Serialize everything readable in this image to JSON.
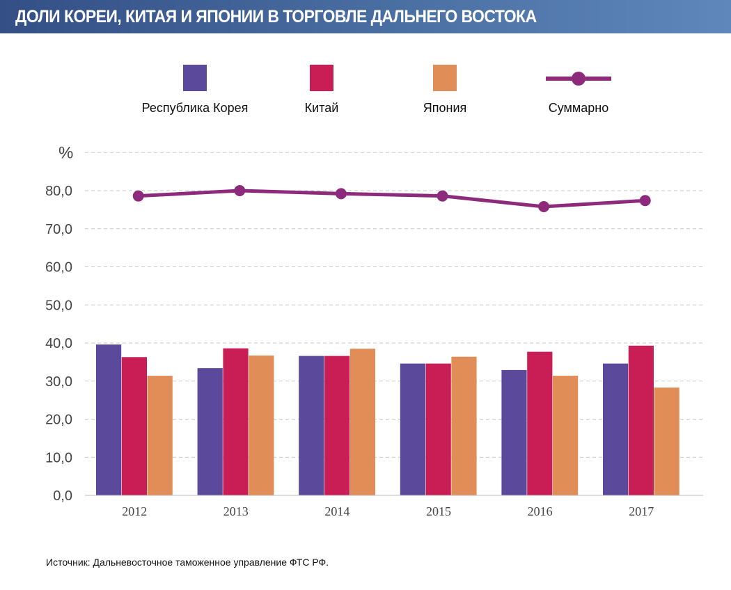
{
  "header": {
    "title": "ДОЛИ КОРЕИ, КИТАЯ И ЯПОНИИ В ТОРГОВЛЕ ДАЛЬНЕГО ВОСТОКА"
  },
  "source": "Источник: Дальневосточное таможенное управление ФТС РФ.",
  "chart_data": {
    "type": "bar",
    "title": "ДОЛИ КОРЕИ, КИТАЯ И ЯПОНИИ В ТОРГОВЛЕ ДАЛЬНЕГО ВОСТОКА",
    "ylabel": "%",
    "ylim": [
      0,
      90
    ],
    "y_ticks": [
      0,
      10,
      20,
      30,
      40,
      50,
      60,
      70,
      80
    ],
    "y_tick_labels": [
      "0,0",
      "10,0",
      "20,0",
      "30,0",
      "40,0",
      "50,0",
      "60,0",
      "70,0",
      "80,0"
    ],
    "grid": true,
    "legend_position": "top",
    "categories": [
      "2012",
      "2013",
      "2014",
      "2015",
      "2016",
      "2017"
    ],
    "series": [
      {
        "name": "Республика Корея",
        "type": "bar",
        "color": "#5b4a9b",
        "values": [
          39.6,
          33.4,
          36.6,
          34.6,
          32.9,
          34.6
        ]
      },
      {
        "name": "Китай",
        "type": "bar",
        "color": "#c81e55",
        "values": [
          36.3,
          38.6,
          36.6,
          34.6,
          37.7,
          39.3
        ]
      },
      {
        "name": "Япония",
        "type": "bar",
        "color": "#e08d58",
        "values": [
          31.4,
          36.7,
          38.5,
          36.4,
          31.4,
          28.3
        ]
      },
      {
        "name": "Суммарно",
        "type": "line",
        "color": "#8e2a7c",
        "values": [
          78.6,
          80.0,
          79.2,
          78.6,
          75.8,
          77.4
        ]
      }
    ]
  }
}
